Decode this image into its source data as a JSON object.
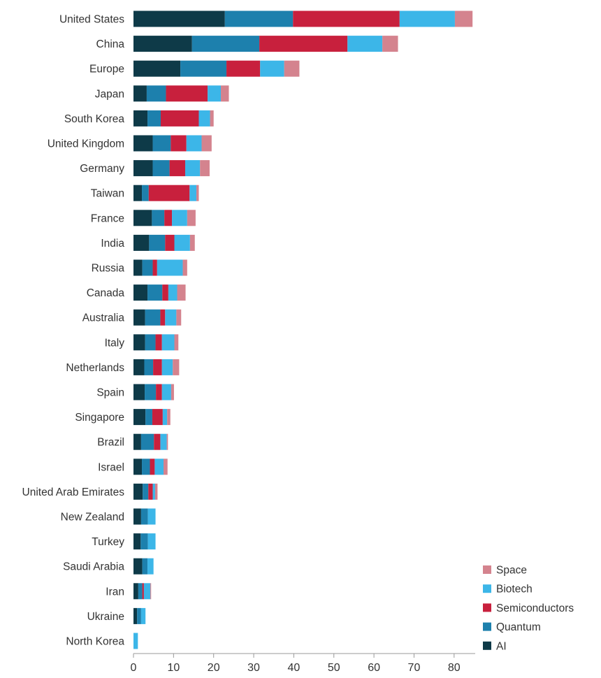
{
  "chart_data": {
    "type": "bar",
    "orientation": "horizontal",
    "stacked": true,
    "title": "",
    "xlabel": "",
    "ylabel": "",
    "xlim": [
      0,
      85
    ],
    "xticks": [
      "0",
      "10",
      "20",
      "30",
      "40",
      "50",
      "60",
      "70",
      "80"
    ],
    "grid": false,
    "legend_position": "bottom-right",
    "categories": [
      "United States",
      "China",
      "Europe",
      "Japan",
      "South Korea",
      "United Kingdom",
      "Germany",
      "Taiwan",
      "France",
      "India",
      "Russia",
      "Canada",
      "Australia",
      "Italy",
      "Netherlands",
      "Spain",
      "Singapore",
      "Brazil",
      "Israel",
      "United Arab Emirates",
      "New Zealand",
      "Turkey",
      "Saudi Arabia",
      "Iran",
      "Ukraine",
      "North Korea"
    ],
    "series": [
      {
        "name": "AI",
        "color": "#0e3a48",
        "values": [
          22.8,
          14.6,
          11.7,
          3.3,
          3.5,
          4.8,
          4.8,
          2.1,
          4.6,
          3.9,
          2.2,
          3.5,
          2.9,
          2.9,
          2.7,
          2.8,
          3.0,
          1.9,
          2.1,
          2.3,
          1.9,
          1.8,
          2.2,
          1.2,
          0.9,
          0.0
        ]
      },
      {
        "name": "Quantum",
        "color": "#1d80ad",
        "values": [
          17.0,
          16.8,
          11.5,
          4.8,
          3.3,
          4.5,
          4.2,
          1.7,
          3.1,
          4.0,
          2.6,
          3.7,
          3.8,
          2.6,
          2.2,
          2.8,
          1.7,
          3.2,
          2.0,
          1.4,
          1.7,
          1.8,
          1.3,
          1.0,
          1.0,
          0.0
        ]
      },
      {
        "name": "Semiconductors",
        "color": "#c8203d",
        "values": [
          26.6,
          22.0,
          8.4,
          10.4,
          9.5,
          3.9,
          3.9,
          10.2,
          1.9,
          2.3,
          1.1,
          1.5,
          1.2,
          1.6,
          2.2,
          1.5,
          2.6,
          1.6,
          1.2,
          1.1,
          0.0,
          0.0,
          0.0,
          0.4,
          0.0,
          0.0
        ]
      },
      {
        "name": "Biotech",
        "color": "#3cb6e8",
        "values": [
          13.8,
          8.7,
          6.0,
          3.3,
          2.8,
          3.8,
          3.7,
          1.7,
          3.8,
          3.9,
          6.4,
          2.2,
          2.8,
          3.1,
          2.7,
          2.3,
          1.1,
          1.6,
          2.2,
          0.6,
          1.9,
          1.9,
          1.5,
          1.6,
          1.1,
          1.1
        ]
      },
      {
        "name": "Space",
        "color": "#d4838e",
        "values": [
          4.4,
          3.9,
          3.8,
          2.0,
          0.9,
          2.5,
          2.4,
          0.6,
          2.1,
          1.2,
          1.1,
          2.1,
          1.2,
          1.0,
          1.6,
          0.7,
          0.8,
          0.3,
          1.0,
          0.6,
          0.0,
          0.0,
          0.0,
          0.2,
          0.0,
          0.0
        ]
      }
    ]
  }
}
